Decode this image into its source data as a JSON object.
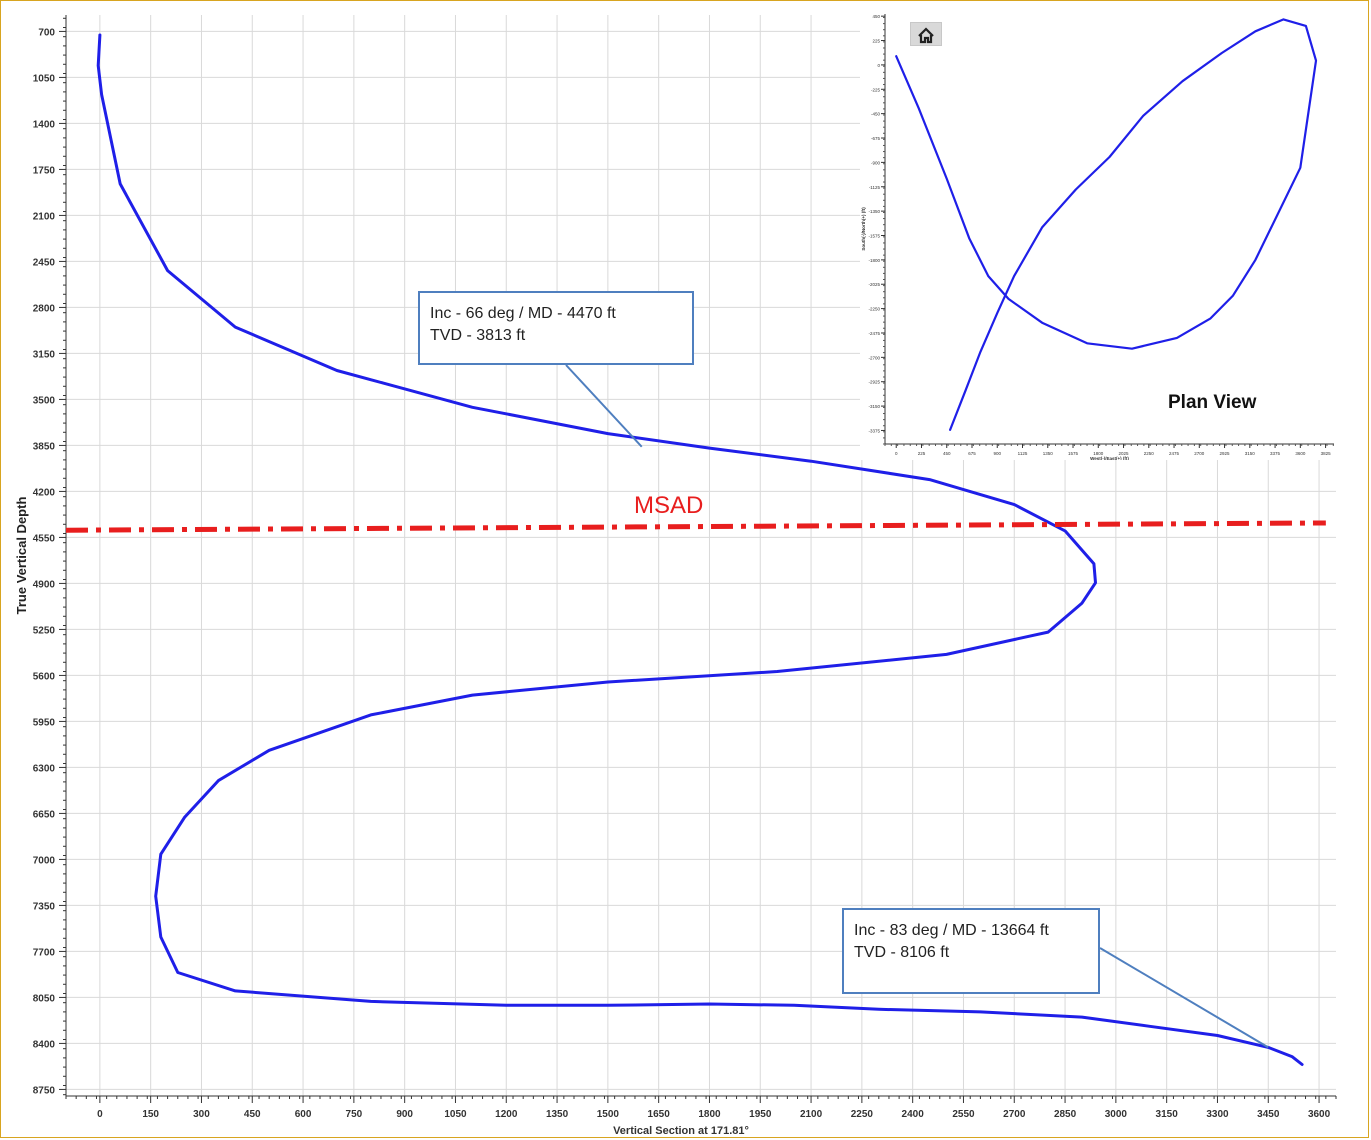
{
  "chart_data": [
    {
      "type": "line",
      "title": "",
      "xlabel": "Vertical Section at 171.81°",
      "ylabel": "True Vertical Depth",
      "xlim": [
        -100,
        3650
      ],
      "ylim": [
        575,
        8800
      ],
      "y_inverted": true,
      "xticks": [
        0,
        150,
        300,
        450,
        600,
        750,
        900,
        1050,
        1200,
        1350,
        1500,
        1650,
        1800,
        1950,
        2100,
        2250,
        2400,
        2550,
        2700,
        2850,
        3000,
        3150,
        3300,
        3450,
        3600
      ],
      "yticks": [
        700,
        1050,
        1400,
        1750,
        2100,
        2450,
        2800,
        3150,
        3500,
        3850,
        4200,
        4550,
        4900,
        5250,
        5600,
        5950,
        6300,
        6650,
        7000,
        7350,
        7700,
        8050,
        8400,
        8750
      ],
      "grid": true,
      "series": [
        {
          "color": "#1f1fe8",
          "x": [
            0,
            -5,
            5,
            60,
            200,
            400,
            700,
            1100,
            1500,
            1800,
            2100,
            2450,
            2700,
            2850,
            2935,
            2940,
            2900,
            2800,
            2500,
            2000,
            1500,
            1100,
            800,
            500,
            350,
            250,
            180,
            165,
            180,
            230,
            400,
            800,
            1200,
            1500,
            1800,
            2050,
            2300,
            2600,
            2900,
            3100,
            3300,
            3450,
            3520,
            3550
          ],
          "y": [
            727,
            960,
            1180,
            1860,
            2520,
            2950,
            3280,
            3560,
            3760,
            3870,
            3970,
            4110,
            4300,
            4500,
            4750,
            4895,
            5050,
            5270,
            5440,
            5570,
            5650,
            5750,
            5900,
            6170,
            6400,
            6680,
            6960,
            7280,
            7590,
            7860,
            8000,
            8080,
            8110,
            8110,
            8100,
            8110,
            8140,
            8160,
            8200,
            8270,
            8340,
            8430,
            8500,
            8560
          ]
        },
        {
          "name": "MSAD",
          "color": "#e81e1e",
          "style": "dash-dot",
          "x": [
            -100,
            3620
          ],
          "y": [
            4495,
            4440
          ]
        }
      ],
      "annotations": [
        {
          "lines": [
            "Inc - 66 deg / MD - 4470 ft",
            "TVD - 3813 ft"
          ],
          "x": 1600,
          "y": 3860
        },
        {
          "lines": [
            "Inc - 83 deg / MD - 13664 ft",
            "TVD - 8106 ft"
          ],
          "x": 3450,
          "y": 8430
        }
      ],
      "label_text": "MSAD"
    },
    {
      "type": "line",
      "title": "Plan View",
      "xlabel": "West(-)/East(+) (ft)",
      "ylabel": "South(-)/North(+) (ft)",
      "xlim": [
        -100,
        3900
      ],
      "ylim": [
        -3500,
        470
      ],
      "xticks": [
        0,
        225,
        450,
        675,
        900,
        1125,
        1350,
        1575,
        1800,
        2025,
        2250,
        2475,
        2700,
        2925,
        3150,
        3375,
        3600,
        3825
      ],
      "yticks": [
        450,
        225,
        0,
        -225,
        -450,
        -675,
        -900,
        -1125,
        -1350,
        -1575,
        -1800,
        -2025,
        -2250,
        -2475,
        -2700,
        -2925,
        -3150,
        -3375
      ],
      "grid": false,
      "series": [
        {
          "color": "#1f1fe8",
          "x": [
            0,
            200,
            450,
            650,
            820,
            1000,
            1300,
            1700,
            2100,
            2500,
            2800,
            3000,
            3200,
            3600,
            3740,
            3650,
            3450,
            3200,
            2900,
            2550,
            2200,
            1900,
            1600,
            1300,
            1050,
            900,
            750,
            620,
            480
          ],
          "y": [
            80,
            -400,
            -1050,
            -1600,
            -1950,
            -2160,
            -2380,
            -2570,
            -2620,
            -2520,
            -2340,
            -2130,
            -1800,
            -950,
            40,
            360,
            420,
            310,
            110,
            -150,
            -470,
            -850,
            -1150,
            -1500,
            -1950,
            -2290,
            -2650,
            -3000,
            -3370
          ]
        }
      ]
    }
  ],
  "inset": {
    "home_icon": "home-icon"
  }
}
